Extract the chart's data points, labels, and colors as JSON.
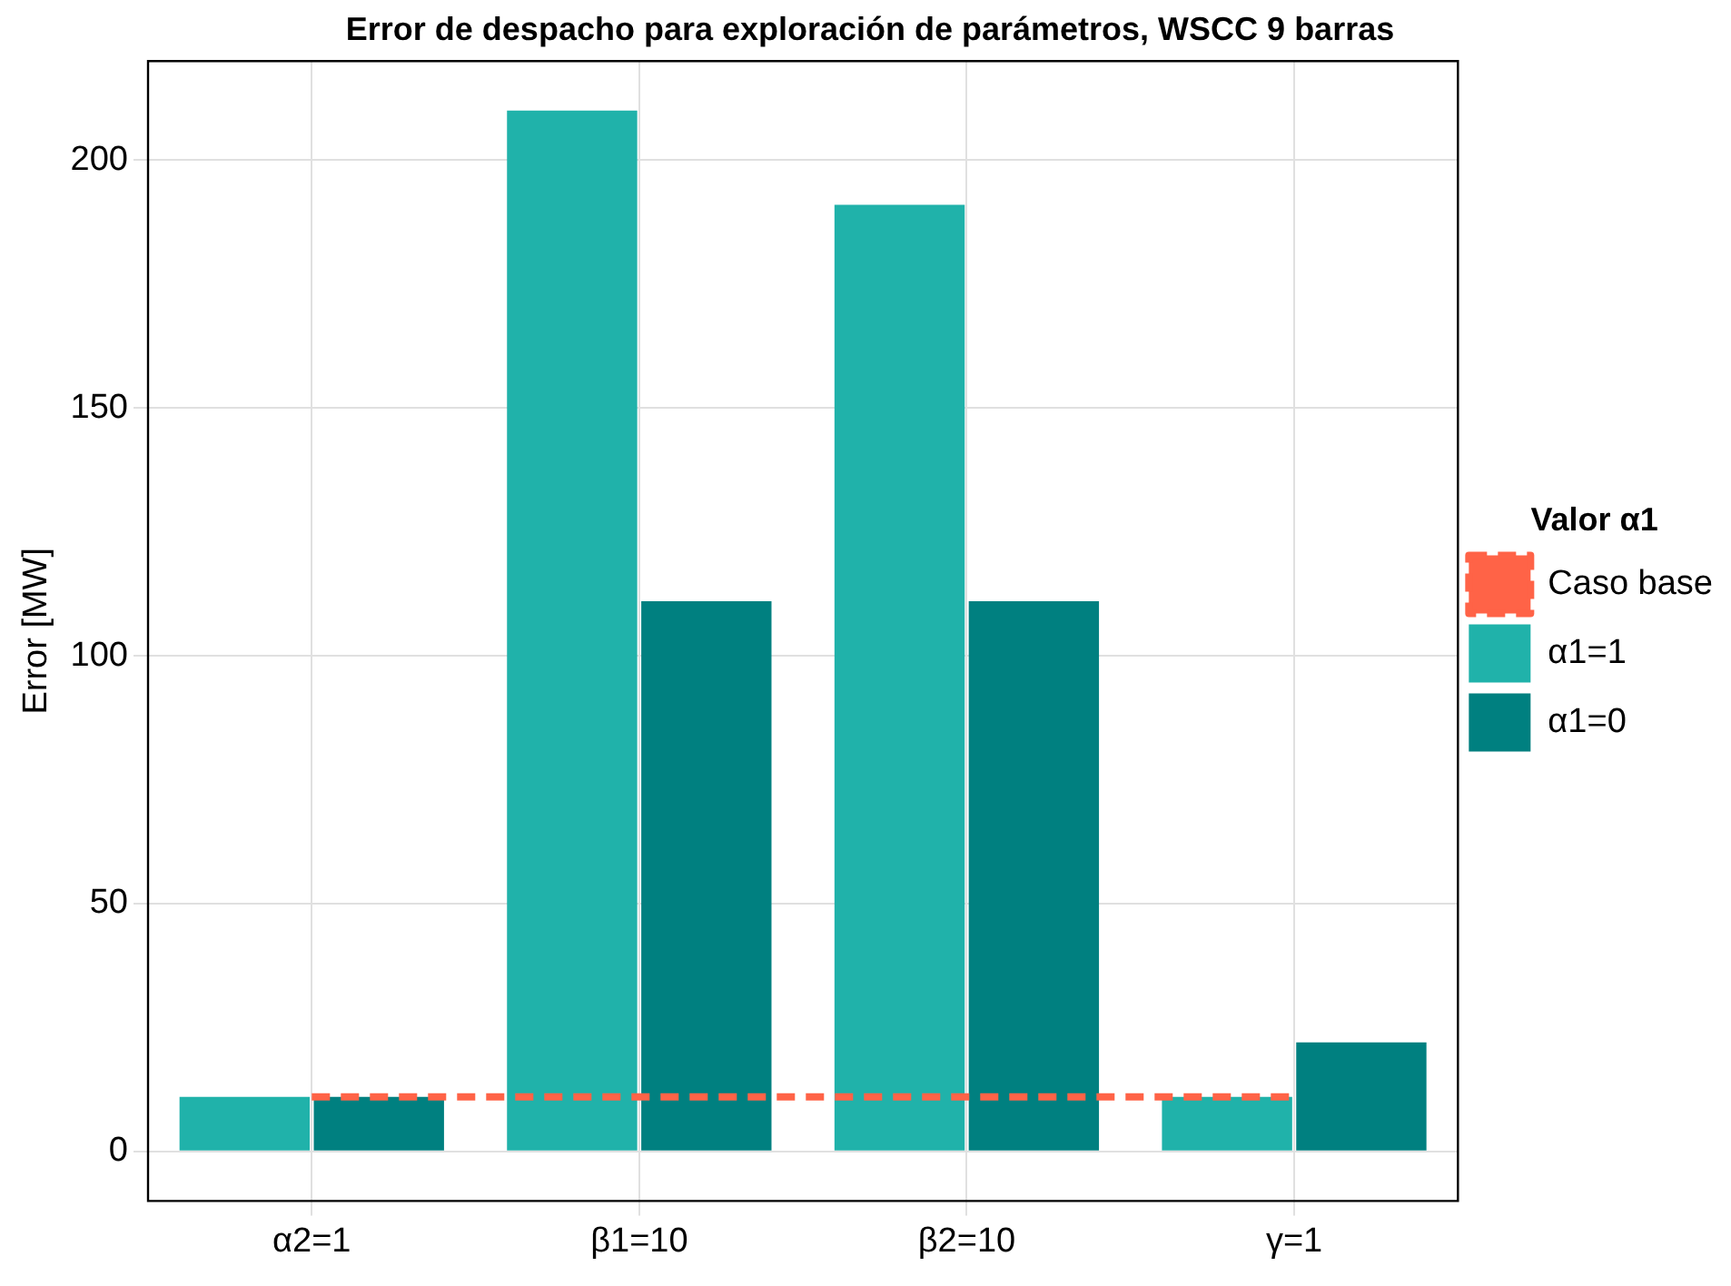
{
  "chart_data": {
    "type": "bar",
    "title": "Error de despacho para exploración de parámetros, WSCC 9 barras",
    "ylabel": "Error [MW]",
    "legend_title": "Valor α1",
    "categories": [
      "α2=1",
      "β1=10",
      "β2=10",
      "γ=1"
    ],
    "series": [
      {
        "name": "Caso base",
        "type": "line",
        "color": "#ff6347",
        "line_style": "dashed",
        "marker": "none",
        "values": [
          11,
          11,
          11,
          11
        ]
      },
      {
        "name": "α1=1",
        "color": "#20b2aa",
        "values": [
          11,
          210,
          191,
          11
        ]
      },
      {
        "name": "α1=0",
        "color": "#008080",
        "values": [
          11,
          111,
          111,
          22
        ]
      }
    ],
    "ylim": [
      -10,
      220
    ],
    "yticks": [
      0,
      50,
      100,
      150,
      200
    ],
    "grid": true,
    "legend": "right"
  }
}
